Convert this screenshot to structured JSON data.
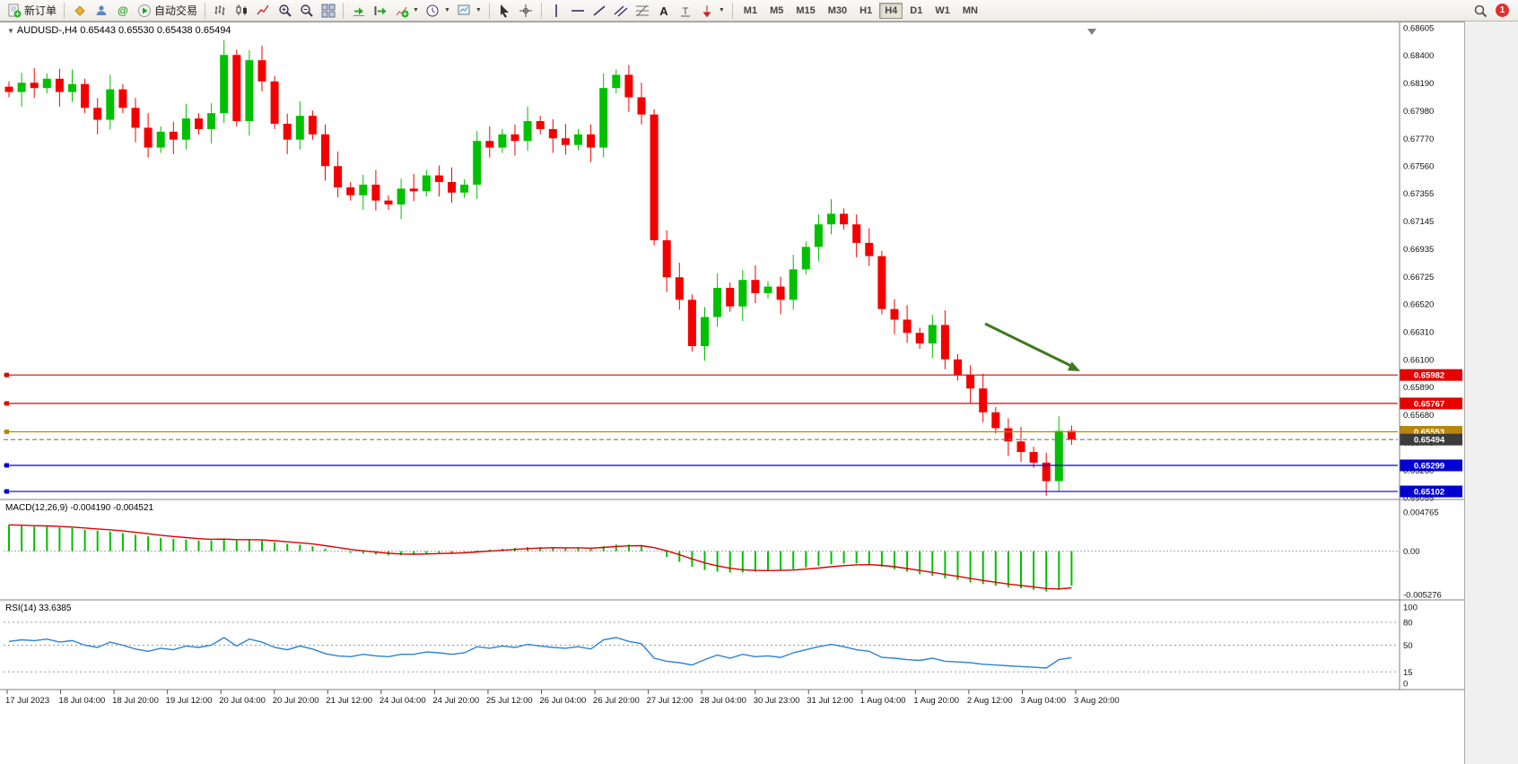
{
  "toolbar": {
    "new_order_label": "新订单",
    "autotrading_label": "自动交易",
    "timeframes": [
      "M1",
      "M5",
      "M15",
      "M30",
      "H1",
      "H4",
      "D1",
      "W1",
      "MN"
    ],
    "active_timeframe": "H4",
    "notification_count": "1"
  },
  "chart": {
    "title": "AUDUSD-,H4 0.65443 0.65530 0.65438 0.65494",
    "symbol": "AUDUSD-",
    "timeframe": "H4",
    "ohlc_display": {
      "open": "0.65443",
      "high": "0.65530",
      "low": "0.65438",
      "close": "0.65494"
    },
    "price_max": 0.68605,
    "price_min": 0.65055,
    "price_axis_labels": [
      "0.68605",
      "0.68400",
      "0.68190",
      "0.67980",
      "0.67770",
      "0.67560",
      "0.67355",
      "0.67145",
      "0.66935",
      "0.66725",
      "0.66520",
      "0.66310",
      "0.66100",
      "0.65890",
      "0.65680",
      "0.65470",
      "0.65260",
      "0.65055"
    ],
    "lines": [
      {
        "price": 0.65982,
        "label": "0.65982",
        "color": "#e60000",
        "style": "solid"
      },
      {
        "price": 0.65767,
        "label": "0.65767",
        "color": "#e60000",
        "style": "solid"
      },
      {
        "price": 0.65553,
        "label": "0.65553",
        "color": "#b8860b",
        "style": "solid"
      },
      {
        "price": 0.65494,
        "label": "0.65494",
        "color": "#3c3c3c",
        "style": "current"
      },
      {
        "price": 0.65299,
        "label": "0.65299",
        "color": "#0000d0",
        "style": "solid"
      },
      {
        "price": 0.65102,
        "label": "0.65102",
        "color": "#0000d0",
        "style": "solid"
      }
    ]
  },
  "indicators": {
    "macd": {
      "label": "MACD(12,26,9) -0.004190 -0.004521",
      "axis": [
        "0.004765",
        "0.00",
        "-0.005276"
      ],
      "max": 0.004765,
      "min": -0.005276,
      "value": -0.00419,
      "signal": -0.004521
    },
    "rsi": {
      "label": "RSI(14) 33.6385",
      "axis": [
        "100",
        "80",
        "50",
        "15",
        "0"
      ],
      "levels": [
        80,
        50,
        15
      ],
      "value": 33.6385
    }
  },
  "chart_data": {
    "type": "candlestick",
    "symbol": "AUDUSD",
    "timeframe": "H4",
    "current_price": 0.65494,
    "up_color": "#00c000",
    "down_color": "#f40000",
    "macd_bar_color": "#00c000",
    "macd_signal_color": "#e00000",
    "rsi_color": "#2c83d5",
    "arrow_color": "#3e7a1e",
    "time_labels": [
      "17 Jul 2023",
      "18 Jul 04:00",
      "18 Jul 20:00",
      "19 Jul 12:00",
      "20 Jul 04:00",
      "20 Jul 20:00",
      "21 Jul 12:00",
      "24 Jul 04:00",
      "24 Jul 20:00",
      "25 Jul 12:00",
      "26 Jul 04:00",
      "26 Jul 20:00",
      "27 Jul 12:00",
      "28 Jul 04:00",
      "30 Jul 23:00",
      "31 Jul 12:00",
      "1 Aug 04:00",
      "1 Aug 20:00",
      "2 Aug 12:00",
      "3 Aug 04:00",
      "3 Aug 20:00"
    ],
    "closes": [
      0.6812,
      0.6819,
      0.6815,
      0.6822,
      0.6812,
      0.6818,
      0.68,
      0.6791,
      0.6814,
      0.68,
      0.6785,
      0.677,
      0.6782,
      0.6776,
      0.6792,
      0.6784,
      0.6796,
      0.684,
      0.679,
      0.6836,
      0.682,
      0.6788,
      0.6776,
      0.6794,
      0.678,
      0.6756,
      0.674,
      0.6734,
      0.6742,
      0.673,
      0.6727,
      0.6739,
      0.6737,
      0.6749,
      0.6744,
      0.6736,
      0.6742,
      0.6775,
      0.677,
      0.678,
      0.6775,
      0.679,
      0.6784,
      0.6777,
      0.6772,
      0.678,
      0.677,
      0.6815,
      0.6825,
      0.6808,
      0.6795,
      0.67,
      0.6672,
      0.6655,
      0.662,
      0.6642,
      0.6664,
      0.665,
      0.667,
      0.666,
      0.6665,
      0.6655,
      0.6678,
      0.6695,
      0.6712,
      0.672,
      0.6712,
      0.6698,
      0.6688,
      0.6648,
      0.664,
      0.663,
      0.6622,
      0.6636,
      0.661,
      0.6598,
      0.6588,
      0.657,
      0.6558,
      0.6548,
      0.654,
      0.6532,
      0.6518,
      0.6556,
      0.65494
    ],
    "macd": [
      0.0032,
      0.0031,
      0.003,
      0.003,
      0.0029,
      0.0028,
      0.0026,
      0.0025,
      0.0024,
      0.0022,
      0.002,
      0.0018,
      0.0016,
      0.0015,
      0.0014,
      0.0013,
      0.0013,
      0.0015,
      0.0013,
      0.0014,
      0.0013,
      0.0011,
      0.0009,
      0.0008,
      0.0006,
      0.0003,
      0.0,
      -0.0002,
      -0.0003,
      -0.0004,
      -0.0005,
      -0.0005,
      -0.0004,
      -0.0003,
      -0.0002,
      -0.0002,
      -0.0001,
      0.0001,
      0.0002,
      0.0003,
      0.0004,
      0.0005,
      0.0005,
      0.0005,
      0.0004,
      0.0004,
      0.0003,
      0.0006,
      0.0008,
      0.0008,
      0.0007,
      0.0,
      -0.0007,
      -0.0013,
      -0.0019,
      -0.0023,
      -0.0025,
      -0.0026,
      -0.0026,
      -0.0025,
      -0.0024,
      -0.0023,
      -0.0022,
      -0.002,
      -0.0018,
      -0.0016,
      -0.0015,
      -0.0015,
      -0.0016,
      -0.0019,
      -0.0022,
      -0.0025,
      -0.0028,
      -0.003,
      -0.0033,
      -0.0035,
      -0.0038,
      -0.004,
      -0.0042,
      -0.0044,
      -0.0045,
      -0.0047,
      -0.0049,
      -0.0047,
      -0.00419
    ],
    "rsi": [
      55,
      57,
      56,
      58,
      54,
      56,
      50,
      47,
      54,
      50,
      45,
      42,
      46,
      44,
      49,
      47,
      50,
      60,
      49,
      58,
      54,
      47,
      44,
      49,
      45,
      39,
      36,
      35,
      38,
      36,
      35,
      38,
      38,
      41,
      40,
      38,
      40,
      48,
      46,
      49,
      47,
      51,
      49,
      47,
      46,
      48,
      45,
      57,
      60,
      55,
      52,
      33,
      29,
      27,
      24,
      31,
      37,
      33,
      38,
      35,
      36,
      34,
      40,
      44,
      48,
      51,
      48,
      44,
      42,
      34,
      33,
      31,
      30,
      33,
      29,
      28,
      27,
      25,
      24,
      23,
      22,
      21,
      20,
      31,
      33.6
    ]
  }
}
